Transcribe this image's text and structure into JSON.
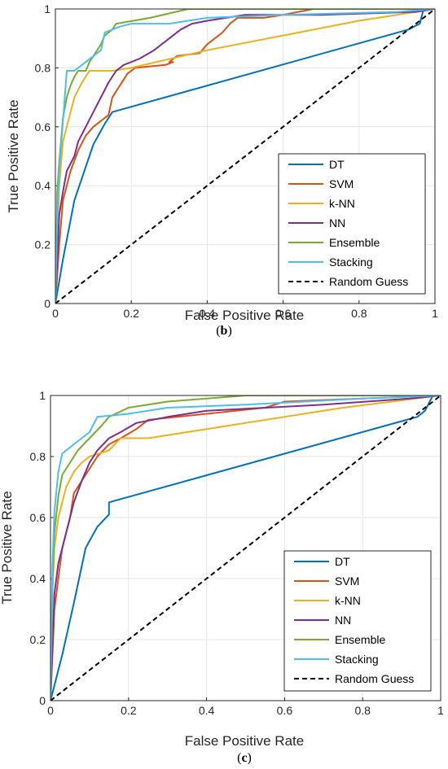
{
  "chart_data": [
    {
      "type": "line",
      "caption": "(b)",
      "xlabel": "False Positive Rate",
      "ylabel": "True Positive Rate",
      "xlim": [
        0,
        1
      ],
      "ylim": [
        0,
        1
      ],
      "xticks": [
        "0",
        "0.2",
        "0.4",
        "0.6",
        "0.8",
        "1"
      ],
      "yticks": [
        "0",
        "0.2",
        "0.4",
        "0.6",
        "0.8",
        "1"
      ],
      "grid": true,
      "legend_position": "bottom-right",
      "series": [
        {
          "name": "DT",
          "color": "#0072BD",
          "dash": false,
          "points": [
            [
              0,
              0
            ],
            [
              0.02,
              0.15
            ],
            [
              0.05,
              0.35
            ],
            [
              0.1,
              0.54
            ],
            [
              0.13,
              0.61
            ],
            [
              0.15,
              0.65
            ],
            [
              0.93,
              0.93
            ],
            [
              0.96,
              0.95
            ],
            [
              0.97,
              1
            ],
            [
              1,
              1
            ]
          ]
        },
        {
          "name": "SVM",
          "color": "#D95319",
          "dash": false,
          "points": [
            [
              0,
              0
            ],
            [
              0.01,
              0.2
            ],
            [
              0.02,
              0.35
            ],
            [
              0.04,
              0.45
            ],
            [
              0.06,
              0.52
            ],
            [
              0.08,
              0.57
            ],
            [
              0.1,
              0.6
            ],
            [
              0.12,
              0.62
            ],
            [
              0.14,
              0.64
            ],
            [
              0.15,
              0.7
            ],
            [
              0.17,
              0.74
            ],
            [
              0.19,
              0.78
            ],
            [
              0.21,
              0.8
            ],
            [
              0.29,
              0.81
            ],
            [
              0.31,
              0.82
            ],
            [
              0.3,
              0.82
            ],
            [
              0.32,
              0.84
            ],
            [
              0.38,
              0.85
            ],
            [
              0.4,
              0.88
            ],
            [
              0.42,
              0.9
            ],
            [
              0.44,
              0.92
            ],
            [
              0.46,
              0.95
            ],
            [
              0.48,
              0.97
            ],
            [
              0.55,
              0.97
            ],
            [
              0.6,
              0.98
            ],
            [
              0.68,
              1
            ],
            [
              1,
              1
            ]
          ]
        },
        {
          "name": "k-NN",
          "color": "#EDB120",
          "dash": false,
          "points": [
            [
              0,
              0
            ],
            [
              0.01,
              0.4
            ],
            [
              0.02,
              0.55
            ],
            [
              0.03,
              0.6
            ],
            [
              0.04,
              0.65
            ],
            [
              0.05,
              0.7
            ],
            [
              0.07,
              0.75
            ],
            [
              0.09,
              0.79
            ],
            [
              0.13,
              0.79
            ],
            [
              0.15,
              0.79
            ],
            [
              0.2,
              0.8
            ],
            [
              0.4,
              0.86
            ],
            [
              0.6,
              0.91
            ],
            [
              0.8,
              0.96
            ],
            [
              1,
              1
            ]
          ]
        },
        {
          "name": "NN",
          "color": "#7E2F8E",
          "dash": false,
          "points": [
            [
              0,
              0
            ],
            [
              0.01,
              0.3
            ],
            [
              0.02,
              0.38
            ],
            [
              0.03,
              0.45
            ],
            [
              0.05,
              0.5
            ],
            [
              0.06,
              0.55
            ],
            [
              0.08,
              0.6
            ],
            [
              0.1,
              0.65
            ],
            [
              0.12,
              0.7
            ],
            [
              0.14,
              0.75
            ],
            [
              0.16,
              0.79
            ],
            [
              0.18,
              0.81
            ],
            [
              0.22,
              0.83
            ],
            [
              0.26,
              0.86
            ],
            [
              0.3,
              0.9
            ],
            [
              0.33,
              0.93
            ],
            [
              0.36,
              0.95
            ],
            [
              0.4,
              0.96
            ],
            [
              0.5,
              0.98
            ],
            [
              0.7,
              0.98
            ],
            [
              0.95,
              0.99
            ],
            [
              1,
              1
            ]
          ]
        },
        {
          "name": "Ensemble",
          "color": "#77AC30",
          "dash": false,
          "points": [
            [
              0,
              0
            ],
            [
              0.005,
              0.38
            ],
            [
              0.01,
              0.48
            ],
            [
              0.02,
              0.63
            ],
            [
              0.03,
              0.7
            ],
            [
              0.04,
              0.74
            ],
            [
              0.05,
              0.77
            ],
            [
              0.06,
              0.79
            ],
            [
              0.08,
              0.79
            ],
            [
              0.09,
              0.82
            ],
            [
              0.11,
              0.86
            ],
            [
              0.12,
              0.88
            ],
            [
              0.13,
              0.91
            ],
            [
              0.15,
              0.93
            ],
            [
              0.16,
              0.95
            ],
            [
              0.25,
              0.97
            ],
            [
              0.35,
              1
            ],
            [
              1,
              1
            ]
          ]
        },
        {
          "name": "Stacking",
          "color": "#4DBEEE",
          "dash": false,
          "points": [
            [
              0,
              0
            ],
            [
              0.005,
              0.3
            ],
            [
              0.01,
              0.45
            ],
            [
              0.02,
              0.62
            ],
            [
              0.03,
              0.79
            ],
            [
              0.05,
              0.79
            ],
            [
              0.08,
              0.82
            ],
            [
              0.12,
              0.86
            ],
            [
              0.13,
              0.92
            ],
            [
              0.15,
              0.93
            ],
            [
              0.17,
              0.94
            ],
            [
              0.2,
              0.95
            ],
            [
              0.3,
              0.95
            ],
            [
              0.4,
              0.97
            ],
            [
              0.6,
              0.98
            ],
            [
              0.9,
              0.99
            ],
            [
              1,
              1
            ]
          ]
        },
        {
          "name": "Random Guess",
          "color": "#000000",
          "dash": true,
          "points": [
            [
              0,
              0
            ],
            [
              1,
              1
            ]
          ]
        }
      ]
    },
    {
      "type": "line",
      "caption": "(c)",
      "xlabel": "False Positive Rate",
      "ylabel": "True Positive Rate",
      "xlim": [
        0,
        1
      ],
      "ylim": [
        0,
        1
      ],
      "xticks": [
        "0",
        "0.2",
        "0.4",
        "0.6",
        "0.8",
        "1"
      ],
      "yticks": [
        "0",
        "0.2",
        "0.4",
        "0.6",
        "0.8",
        "1"
      ],
      "grid": true,
      "legend_position": "bottom-right",
      "series": [
        {
          "name": "DT",
          "color": "#0072BD",
          "dash": false,
          "points": [
            [
              0,
              0
            ],
            [
              0.03,
              0.15
            ],
            [
              0.06,
              0.32
            ],
            [
              0.09,
              0.5
            ],
            [
              0.12,
              0.57
            ],
            [
              0.15,
              0.61
            ],
            [
              0.15,
              0.65
            ],
            [
              0.94,
              0.93
            ],
            [
              0.96,
              0.95
            ],
            [
              0.98,
              1
            ],
            [
              1,
              1
            ]
          ]
        },
        {
          "name": "SVM",
          "color": "#D95319",
          "dash": false,
          "points": [
            [
              0,
              0
            ],
            [
              0.01,
              0.3
            ],
            [
              0.02,
              0.4
            ],
            [
              0.03,
              0.5
            ],
            [
              0.05,
              0.6
            ],
            [
              0.06,
              0.68
            ],
            [
              0.08,
              0.72
            ],
            [
              0.1,
              0.76
            ],
            [
              0.12,
              0.8
            ],
            [
              0.15,
              0.84
            ],
            [
              0.18,
              0.86
            ],
            [
              0.22,
              0.89
            ],
            [
              0.25,
              0.92
            ],
            [
              0.4,
              0.94
            ],
            [
              0.55,
              0.96
            ],
            [
              0.6,
              0.98
            ],
            [
              1,
              1
            ]
          ]
        },
        {
          "name": "k-NN",
          "color": "#EDB120",
          "dash": false,
          "points": [
            [
              0,
              0
            ],
            [
              0.005,
              0.35
            ],
            [
              0.01,
              0.5
            ],
            [
              0.02,
              0.6
            ],
            [
              0.04,
              0.7
            ],
            [
              0.06,
              0.75
            ],
            [
              0.08,
              0.78
            ],
            [
              0.1,
              0.8
            ],
            [
              0.15,
              0.82
            ],
            [
              0.18,
              0.86
            ],
            [
              0.25,
              0.86
            ],
            [
              0.5,
              0.91
            ],
            [
              0.75,
              0.96
            ],
            [
              1,
              1
            ]
          ]
        },
        {
          "name": "NN",
          "color": "#7E2F8E",
          "dash": false,
          "points": [
            [
              0,
              0
            ],
            [
              0.01,
              0.35
            ],
            [
              0.02,
              0.45
            ],
            [
              0.04,
              0.55
            ],
            [
              0.06,
              0.65
            ],
            [
              0.08,
              0.72
            ],
            [
              0.1,
              0.78
            ],
            [
              0.12,
              0.82
            ],
            [
              0.15,
              0.86
            ],
            [
              0.18,
              0.88
            ],
            [
              0.22,
              0.91
            ],
            [
              0.3,
              0.93
            ],
            [
              0.4,
              0.95
            ],
            [
              0.7,
              0.97
            ],
            [
              0.92,
              0.99
            ],
            [
              1,
              1
            ]
          ]
        },
        {
          "name": "Ensemble",
          "color": "#77AC30",
          "dash": false,
          "points": [
            [
              0,
              0
            ],
            [
              0.005,
              0.4
            ],
            [
              0.01,
              0.55
            ],
            [
              0.02,
              0.67
            ],
            [
              0.03,
              0.74
            ],
            [
              0.05,
              0.78
            ],
            [
              0.07,
              0.82
            ],
            [
              0.1,
              0.86
            ],
            [
              0.13,
              0.9
            ],
            [
              0.15,
              0.93
            ],
            [
              0.2,
              0.96
            ],
            [
              0.3,
              0.98
            ],
            [
              0.5,
              1
            ],
            [
              1,
              1
            ]
          ]
        },
        {
          "name": "Stacking",
          "color": "#4DBEEE",
          "dash": false,
          "points": [
            [
              0,
              0
            ],
            [
              0.005,
              0.45
            ],
            [
              0.01,
              0.62
            ],
            [
              0.02,
              0.75
            ],
            [
              0.03,
              0.81
            ],
            [
              0.06,
              0.84
            ],
            [
              0.1,
              0.88
            ],
            [
              0.12,
              0.93
            ],
            [
              0.2,
              0.94
            ],
            [
              0.3,
              0.96
            ],
            [
              0.5,
              0.97
            ],
            [
              0.8,
              0.99
            ],
            [
              1,
              1
            ]
          ]
        },
        {
          "name": "Random Guess",
          "color": "#000000",
          "dash": true,
          "points": [
            [
              0,
              0
            ],
            [
              1,
              1
            ]
          ]
        }
      ]
    }
  ]
}
